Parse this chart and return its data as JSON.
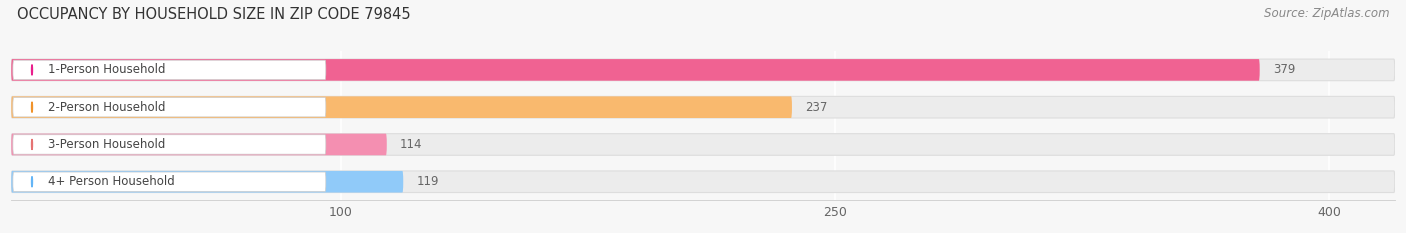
{
  "title": "OCCUPANCY BY HOUSEHOLD SIZE IN ZIP CODE 79845",
  "source": "Source: ZipAtlas.com",
  "categories": [
    "1-Person Household",
    "2-Person Household",
    "3-Person Household",
    "4+ Person Household"
  ],
  "values": [
    379,
    237,
    114,
    119
  ],
  "bar_colors": [
    "#f06292",
    "#f9b96e",
    "#f48fb1",
    "#90caf9"
  ],
  "dot_colors": [
    "#e91e8c",
    "#f0922a",
    "#e57373",
    "#64b5f6"
  ],
  "background_color": "#f7f7f7",
  "bar_bg_color": "#ececec",
  "label_box_color": "#ffffff",
  "xlim_max": 420,
  "xticks": [
    100,
    250,
    400
  ],
  "title_fontsize": 10.5,
  "source_fontsize": 8.5,
  "label_fontsize": 8.5,
  "value_fontsize": 8.5,
  "tick_fontsize": 9
}
